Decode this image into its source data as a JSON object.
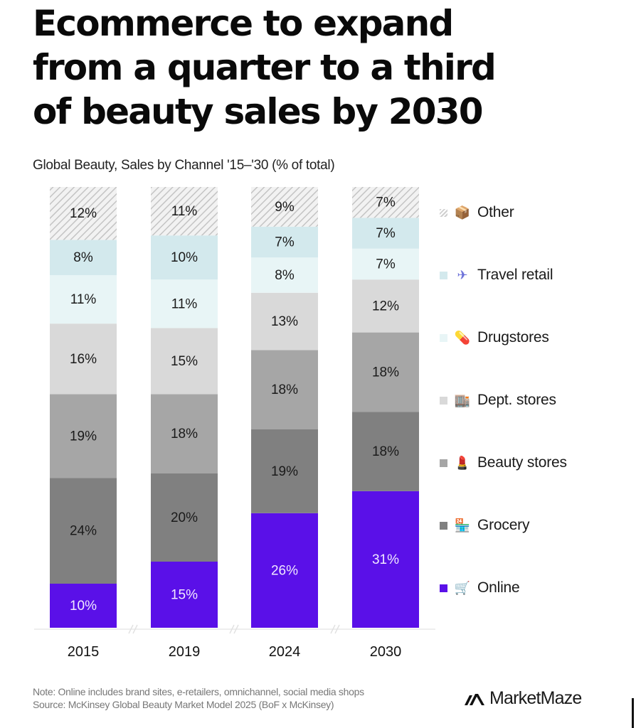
{
  "title": "Ecommerce to expand from a quarter to a third of beauty sales by 2030",
  "title_lines": [
    "Ecommerce to expand",
    "from a quarter to a third",
    "of beauty sales by 2030"
  ],
  "subtitle": "Global Beauty, Sales by Channel '15–'30 (% of total)",
  "note": "Note: Online includes brand sites, e-retailers, omnichannel, social media shops",
  "source": "Source: McKinsey Global Beauty Market Model 2025 (BoF x McKinsey)",
  "brand": "MarketMaze",
  "chart_data": {
    "type": "bar",
    "stacked": true,
    "title": "Ecommerce to expand from a quarter to a third of beauty sales by 2030",
    "subtitle": "Global Beauty, Sales by Channel '15–'30 (% of total)",
    "xlabel": "",
    "ylabel": "% of total",
    "ylim": [
      0,
      100
    ],
    "grid": false,
    "legend_position": "right",
    "categories": [
      "2015",
      "2019",
      "2024",
      "2030"
    ],
    "series": [
      {
        "name": "Online",
        "icon": "shopping-cart-icon",
        "color": "#5a10e8",
        "label_color": "#f0e8ff",
        "pattern": "solid",
        "values": [
          10,
          15,
          26,
          31
        ]
      },
      {
        "name": "Grocery",
        "icon": "grocery-store-icon",
        "color": "#808080",
        "label_color": "#1a1a1a",
        "pattern": "solid",
        "values": [
          24,
          20,
          19,
          18
        ]
      },
      {
        "name": "Beauty stores",
        "icon": "lipstick-icon",
        "color": "#a6a6a6",
        "label_color": "#1a1a1a",
        "pattern": "solid",
        "values": [
          19,
          18,
          18,
          18
        ]
      },
      {
        "name": "Dept. stores",
        "icon": "department-store-icon",
        "color": "#d9d9d9",
        "label_color": "#1a1a1a",
        "pattern": "solid",
        "values": [
          16,
          15,
          13,
          12
        ]
      },
      {
        "name": "Drugstores",
        "icon": "pill-icon",
        "color": "#e8f5f6",
        "label_color": "#1a1a1a",
        "pattern": "solid",
        "values": [
          11,
          11,
          8,
          7
        ]
      },
      {
        "name": "Travel retail",
        "icon": "airplane-icon",
        "color": "#d3e9ed",
        "label_color": "#1a1a1a",
        "pattern": "solid",
        "values": [
          8,
          10,
          7,
          7
        ]
      },
      {
        "name": "Other",
        "icon": "package-icon",
        "color": "#cccccc",
        "label_color": "#1a1a1a",
        "pattern": "hatched",
        "values": [
          12,
          11,
          9,
          7
        ]
      }
    ],
    "value_suffix": "%"
  },
  "legend": {
    "items": [
      {
        "label": "Other",
        "icon_glyph": "📦",
        "swatch": "hatched",
        "color": "#cccccc"
      },
      {
        "label": "Travel retail",
        "icon_glyph": "✈",
        "swatch": "solid",
        "color": "#d3e9ed"
      },
      {
        "label": "Drugstores",
        "icon_glyph": "💊",
        "swatch": "solid",
        "color": "#e8f5f6"
      },
      {
        "label": "Dept. stores",
        "icon_glyph": "🏬",
        "swatch": "solid",
        "color": "#d9d9d9"
      },
      {
        "label": "Beauty stores",
        "icon_glyph": "💄",
        "swatch": "solid",
        "color": "#a6a6a6"
      },
      {
        "label": "Grocery",
        "icon_glyph": "🏪",
        "swatch": "solid",
        "color": "#808080"
      },
      {
        "label": "Online",
        "icon_glyph": "🛒",
        "swatch": "solid",
        "color": "#5a10e8"
      }
    ]
  }
}
